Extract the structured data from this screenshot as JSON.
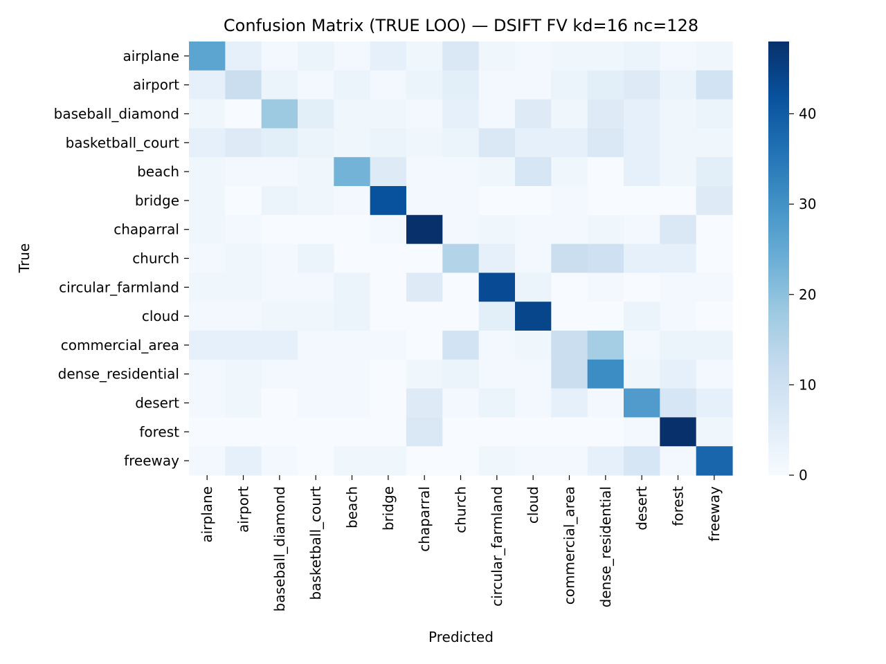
{
  "chart_data": {
    "type": "heatmap",
    "title": "Confusion Matrix (TRUE LOO) — DSIFT FV kd=16 nc=128",
    "xlabel": "Predicted",
    "ylabel": "True",
    "x_categories": [
      "airplane",
      "airport",
      "baseball_diamond",
      "basketball_court",
      "beach",
      "bridge",
      "chaparral",
      "church",
      "circular_farmland",
      "cloud",
      "commercial_area",
      "dense_residential",
      "desert",
      "forest",
      "freeway"
    ],
    "y_categories": [
      "airplane",
      "airport",
      "baseball_diamond",
      "basketball_court",
      "beach",
      "bridge",
      "chaparral",
      "church",
      "circular_farmland",
      "cloud",
      "commercial_area",
      "dense_residential",
      "desert",
      "forest",
      "freeway"
    ],
    "values": [
      [
        26,
        4,
        1,
        3,
        1,
        4,
        2,
        7,
        2,
        1,
        2,
        2,
        3,
        1,
        2
      ],
      [
        4,
        11,
        3,
        1,
        3,
        1,
        3,
        5,
        1,
        1,
        3,
        5,
        6,
        3,
        9
      ],
      [
        2,
        0,
        18,
        5,
        2,
        2,
        1,
        4,
        1,
        6,
        2,
        6,
        4,
        2,
        3
      ],
      [
        4,
        6,
        5,
        3,
        2,
        3,
        2,
        3,
        7,
        4,
        4,
        7,
        4,
        2,
        2
      ],
      [
        2,
        1,
        1,
        2,
        23,
        6,
        1,
        1,
        2,
        8,
        2,
        0,
        4,
        2,
        5
      ],
      [
        2,
        0,
        3,
        2,
        1,
        42,
        1,
        1,
        0,
        0,
        1,
        0,
        0,
        0,
        6
      ],
      [
        2,
        1,
        0,
        0,
        0,
        1,
        48,
        1,
        2,
        1,
        1,
        2,
        1,
        7,
        0
      ],
      [
        1,
        2,
        1,
        3,
        0,
        0,
        0,
        15,
        4,
        1,
        11,
        10,
        4,
        4,
        0
      ],
      [
        2,
        2,
        1,
        1,
        3,
        0,
        6,
        0,
        43,
        3,
        0,
        1,
        0,
        1,
        1
      ],
      [
        1,
        1,
        2,
        2,
        3,
        0,
        0,
        0,
        5,
        44,
        0,
        0,
        3,
        1,
        0
      ],
      [
        4,
        4,
        4,
        1,
        1,
        1,
        0,
        9,
        1,
        2,
        11,
        17,
        1,
        3,
        3
      ],
      [
        1,
        2,
        1,
        1,
        1,
        0,
        2,
        3,
        1,
        1,
        11,
        31,
        2,
        4,
        1
      ],
      [
        1,
        2,
        0,
        1,
        1,
        0,
        6,
        1,
        3,
        1,
        4,
        1,
        28,
        8,
        4
      ],
      [
        0,
        0,
        0,
        0,
        0,
        0,
        7,
        0,
        0,
        0,
        0,
        0,
        1,
        48,
        2
      ],
      [
        1,
        4,
        1,
        0,
        2,
        2,
        0,
        0,
        2,
        1,
        1,
        4,
        8,
        1,
        38
      ]
    ],
    "colormap": "Blues",
    "vmin": 0,
    "vmax": 48,
    "colorbar_ticks": [
      0,
      10,
      20,
      30,
      40
    ],
    "grid": false
  }
}
